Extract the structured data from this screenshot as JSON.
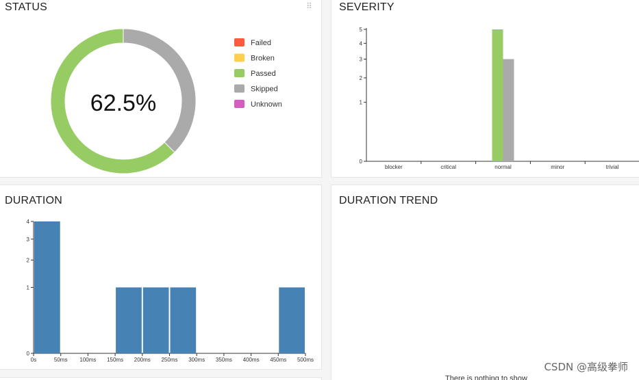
{
  "status": {
    "title": "STATUS",
    "drag_handle": "⠿",
    "percent_label": "62.5%",
    "passed_fraction": 0.625,
    "legend": [
      {
        "label": "Failed",
        "color": "#fd5a3e"
      },
      {
        "label": "Broken",
        "color": "#ffd050"
      },
      {
        "label": "Passed",
        "color": "#97cc64"
      },
      {
        "label": "Skipped",
        "color": "#aaaaaa"
      },
      {
        "label": "Unknown",
        "color": "#d35ebe"
      }
    ]
  },
  "severity": {
    "title": "SEVERITY",
    "chart_data": {
      "type": "bar",
      "categories": [
        "blocker",
        "critical",
        "normal",
        "minor",
        "trivial"
      ],
      "series": [
        {
          "status": "Passed",
          "color": "#97cc64",
          "values": [
            0,
            0,
            5,
            0,
            0
          ]
        },
        {
          "status": "Skipped",
          "color": "#aaaaaa",
          "values": [
            0,
            0,
            3,
            0,
            0
          ]
        }
      ],
      "yticks": [
        "0",
        "1",
        "2",
        "3",
        "4",
        "5"
      ],
      "ylim": [
        0,
        5
      ],
      "yscale": "sqrt"
    }
  },
  "duration": {
    "title": "DURATION",
    "chart_data": {
      "type": "bar",
      "bins_start_ms": [
        0,
        50,
        100,
        150,
        200,
        250,
        300,
        350,
        400,
        450
      ],
      "bin_width_ms": 50,
      "values": [
        4,
        0,
        0,
        1,
        1,
        1,
        0,
        0,
        0,
        1
      ],
      "color": "#4682b4",
      "xticks": [
        "0s",
        "50ms",
        "100ms",
        "150ms",
        "200ms",
        "250ms",
        "300ms",
        "350ms",
        "400ms",
        "450ms",
        "500ms"
      ],
      "yticks": [
        "0",
        "1",
        "2",
        "3",
        "4"
      ],
      "ylim": [
        0,
        4
      ],
      "yscale": "sqrt"
    }
  },
  "duration_trend": {
    "title": "DURATION TREND",
    "empty_message": "There is nothing to show"
  },
  "watermark": "CSDN @高级拳师"
}
